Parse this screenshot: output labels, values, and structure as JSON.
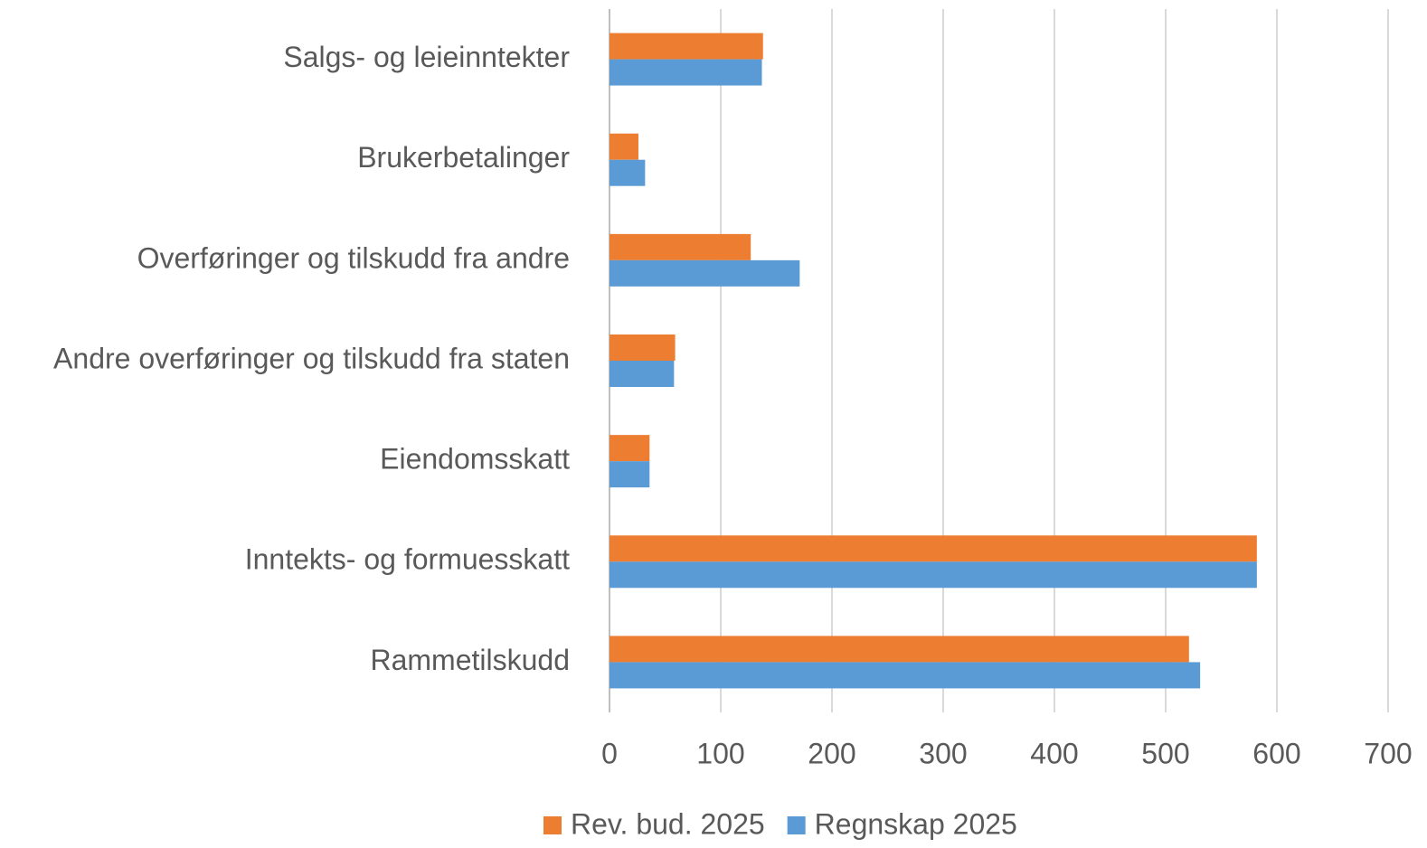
{
  "chart_data": {
    "type": "hbar",
    "categories": [
      "Salgs- og leieinntekter",
      "Brukerbetalinger",
      "Overføringer og tilskudd fra andre",
      "Andre overføringer og tilskudd fra staten",
      "Eiendomsskatt",
      "Inntekts- og formuesskatt",
      "Rammetilskudd"
    ],
    "series": [
      {
        "name": "Rev. bud. 2025",
        "color": "#ed7d31",
        "values": [
          138,
          26,
          127,
          59,
          36,
          582,
          521
        ]
      },
      {
        "name": "Regnskap 2025",
        "color": "#5b9bd5",
        "values": [
          137,
          32,
          171,
          58,
          36,
          582,
          531
        ]
      }
    ],
    "xlim": [
      0,
      700
    ],
    "xticks": [
      0,
      100,
      200,
      300,
      400,
      500,
      600,
      700
    ],
    "grid": true,
    "legend": "bottom"
  }
}
